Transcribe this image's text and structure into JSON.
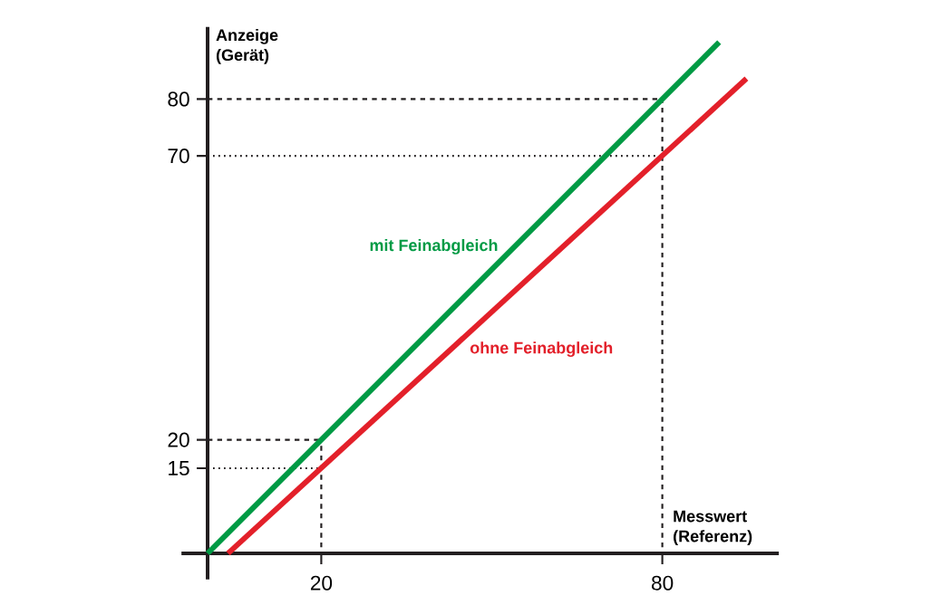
{
  "chart_data": {
    "type": "line",
    "xlabel": "Messwert (Referenz)",
    "ylabel": "Anzeige (Gerät)",
    "series": [
      {
        "name": "mit Feinabgleich",
        "color": "#009a44",
        "x": [
          0,
          90
        ],
        "values": [
          0,
          90
        ]
      },
      {
        "name": "ohne Feinabgleich",
        "color": "#e3202a",
        "x": [
          3.6,
          94.8
        ],
        "values": [
          0,
          83.6
        ]
      }
    ],
    "xlim": [
      -4.6,
      100.5
    ],
    "ylim": [
      -4.6,
      92.7
    ],
    "xticks": [
      20,
      80
    ],
    "yticks": [
      15,
      20,
      70,
      80
    ],
    "ref_lines": [
      {
        "axis": "y",
        "value": 80,
        "color": "#231f20",
        "line_style": "dashed"
      },
      {
        "axis": "y",
        "value": 70,
        "color": "#231f20",
        "line_style": "dotted"
      },
      {
        "axis": "y",
        "value": 20,
        "color": "#231f20",
        "line_style": "dashed"
      },
      {
        "axis": "y",
        "value": 15,
        "color": "#231f20",
        "line_style": "dotted"
      },
      {
        "axis": "x",
        "value": 20,
        "color": "#231f20",
        "line_style": "dashed"
      },
      {
        "axis": "x",
        "value": 80,
        "color": "#231f20",
        "line_style": "dashed"
      }
    ]
  }
}
